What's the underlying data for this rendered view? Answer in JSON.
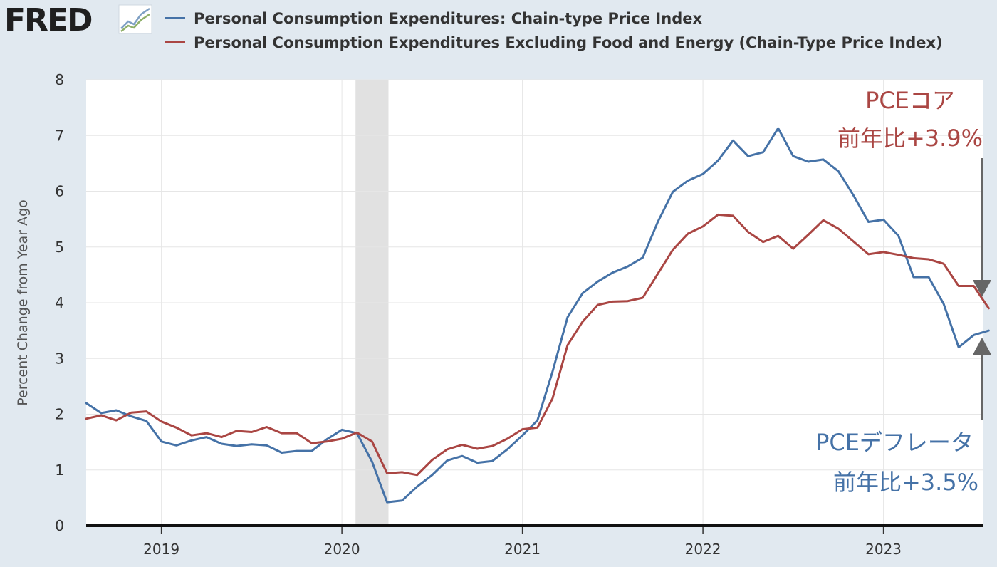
{
  "header": {
    "logo_text": "FRED",
    "logo_icon": "line-chart-icon"
  },
  "legend": [
    {
      "name": "Personal Consumption Expenditures: Chain-type Price Index",
      "color": "#4572a7"
    },
    {
      "name": "Personal Consumption Expenditures Excluding Food and Energy (Chain-Type Price Index)",
      "color": "#aa4643"
    }
  ],
  "annotations": {
    "core_line1": "PCEコア",
    "core_line2": "前年比+3.9%",
    "headline_line1": "PCEデフレータ",
    "headline_line2": "前年比+3.5%",
    "core_color": "#aa4643",
    "headline_color": "#4572a7"
  },
  "chart_data": {
    "type": "line",
    "ylabel": "Percent Change from Year Ago",
    "ylim": [
      0,
      8
    ],
    "yticks": [
      0,
      1,
      2,
      3,
      4,
      5,
      6,
      7,
      8
    ],
    "xlim": [
      "2018-08",
      "2023-07"
    ],
    "xticks": [
      "2019",
      "2020",
      "2021",
      "2022",
      "2023"
    ],
    "recession": {
      "start": "2020-02",
      "end": "2020-04"
    },
    "grid": true,
    "legend_position": "top",
    "series": [
      {
        "name": "Personal Consumption Expenditures: Chain-type Price Index",
        "color": "#4572a7",
        "start": "2018-08",
        "values": [
          2.2,
          2.02,
          2.07,
          1.96,
          1.88,
          1.51,
          1.44,
          1.53,
          1.59,
          1.47,
          1.43,
          1.46,
          1.44,
          1.31,
          1.34,
          1.34,
          1.55,
          1.72,
          1.66,
          1.15,
          0.42,
          0.45,
          0.7,
          0.91,
          1.17,
          1.25,
          1.13,
          1.16,
          1.37,
          1.62,
          1.89,
          2.76,
          3.74,
          4.17,
          4.38,
          4.54,
          4.65,
          4.81,
          5.45,
          5.99,
          6.19,
          6.31,
          6.55,
          6.91,
          6.63,
          6.7,
          7.13,
          6.63,
          6.53,
          6.57,
          6.36,
          5.93,
          5.45,
          5.49,
          5.2,
          4.46,
          4.46,
          3.98,
          3.2,
          3.42,
          3.5
        ]
      },
      {
        "name": "Personal Consumption Expenditures Excluding Food and Energy (Chain-Type Price Index)",
        "color": "#aa4643",
        "start": "2018-08",
        "values": [
          1.92,
          1.98,
          1.89,
          2.03,
          2.05,
          1.87,
          1.76,
          1.62,
          1.66,
          1.59,
          1.7,
          1.68,
          1.77,
          1.66,
          1.66,
          1.48,
          1.51,
          1.56,
          1.67,
          1.51,
          0.94,
          0.96,
          0.91,
          1.18,
          1.37,
          1.45,
          1.38,
          1.43,
          1.56,
          1.73,
          1.76,
          2.28,
          3.24,
          3.66,
          3.96,
          4.02,
          4.03,
          4.09,
          4.52,
          4.95,
          5.24,
          5.37,
          5.58,
          5.56,
          5.27,
          5.09,
          5.2,
          4.97,
          5.22,
          5.48,
          5.33,
          5.1,
          4.87,
          4.91,
          4.86,
          4.8,
          4.78,
          4.7,
          4.3,
          4.3,
          3.9
        ]
      }
    ]
  }
}
